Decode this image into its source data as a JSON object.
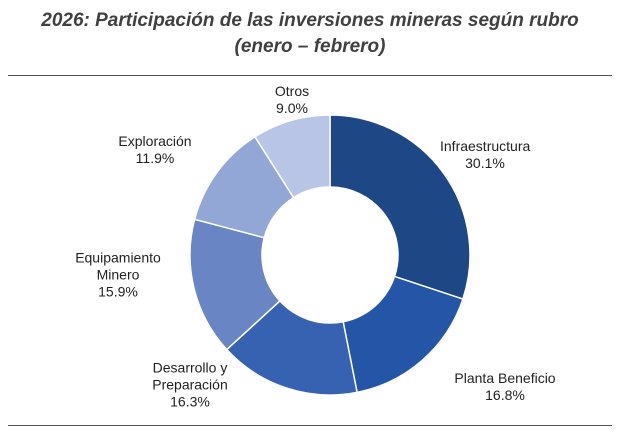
{
  "chart_data": {
    "type": "donut",
    "title": "2026: Participación de las inversiones mineras según rubro",
    "subtitle": "(enero – febrero)",
    "categories": [
      "Infraestructura",
      "Planta Beneficio",
      "Desarrollo y Preparación",
      "Equipamiento Minero",
      "Exploración",
      "Otros"
    ],
    "values": [
      30.1,
      16.8,
      16.3,
      15.9,
      11.9,
      9.0
    ],
    "value_labels": [
      "30.1%",
      "16.8%",
      "16.3%",
      "15.9%",
      "11.9%",
      "9.0%"
    ],
    "colors": [
      "#1d4785",
      "#2555a6",
      "#3762b2",
      "#6a85c3",
      "#93a7d7",
      "#b9c5e6"
    ]
  }
}
